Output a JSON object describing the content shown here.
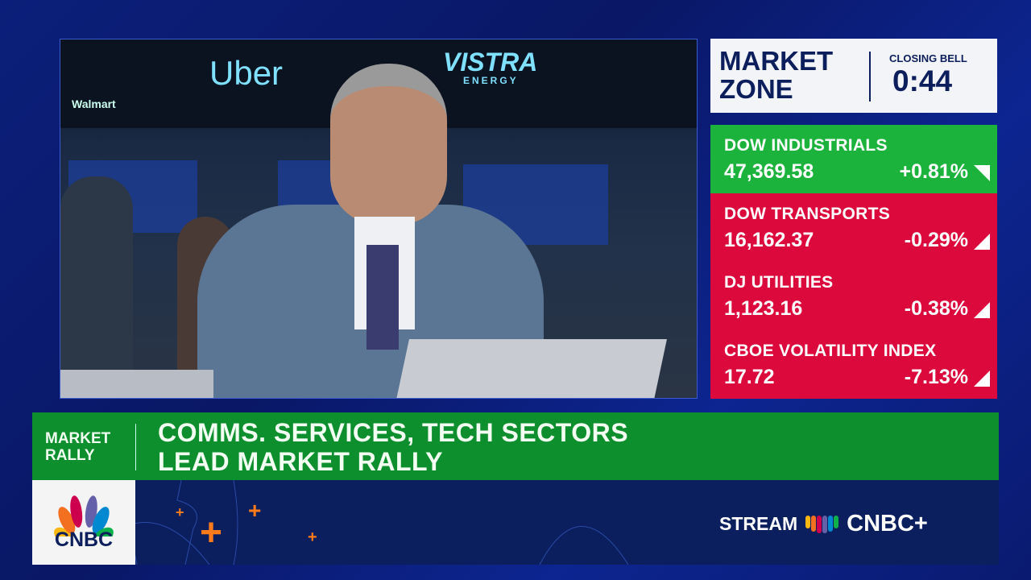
{
  "video": {
    "signs": [
      "Uber",
      "VISTRA",
      "ENERGY",
      "Walmart"
    ]
  },
  "market_zone": {
    "title_line1": "MARKET",
    "title_line2": "ZONE",
    "closing_bell_label": "CLOSING BELL",
    "countdown": "0:44"
  },
  "tickers": [
    {
      "name": "DOW INDUSTRIALS",
      "value": "47,369.58",
      "change": "+0.81%",
      "direction": "up",
      "color": "#1cb33c"
    },
    {
      "name": "DOW TRANSPORTS",
      "value": "16,162.37",
      "change": "-0.29%",
      "direction": "down",
      "color": "#dc0a3c"
    },
    {
      "name": "DJ UTILITIES",
      "value": "1,123.16",
      "change": "-0.38%",
      "direction": "down",
      "color": "#dc0a3c"
    },
    {
      "name": "CBOE VOLATILITY INDEX",
      "value": "17.72",
      "change": "-7.13%",
      "direction": "down",
      "color": "#dc0a3c"
    }
  ],
  "lower_third": {
    "tag_line1": "MARKET",
    "tag_line2": "RALLY",
    "headline_line1": "COMMS. SERVICES, TECH SECTORS",
    "headline_line2": "LEAD MARKET RALLY"
  },
  "branding": {
    "logo_text": "CNBC",
    "stream_label": "STREAM",
    "stream_brand": "CNBC+",
    "accent": "#ff7a1a"
  }
}
